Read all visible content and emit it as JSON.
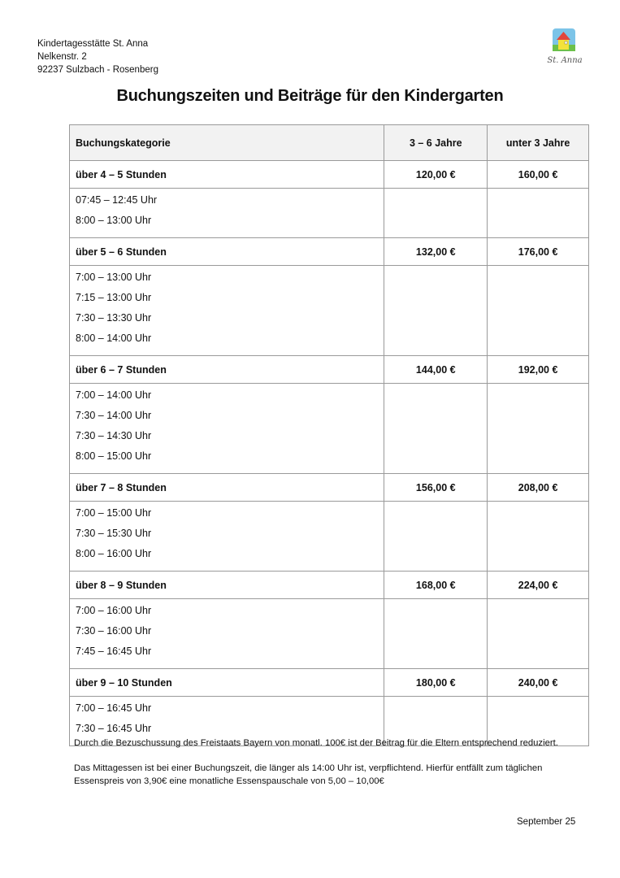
{
  "address": {
    "line1": "Kindertagesstätte St. Anna",
    "line2": "Nelkenstr. 2",
    "line3": "92237 Sulzbach - Rosenberg"
  },
  "logo": {
    "text": "St. Anna"
  },
  "title": "Buchungszeiten und Beiträge für den Kindergarten",
  "table": {
    "headers": [
      "Buchungskategorie",
      "3 – 6 Jahre",
      "unter 3 Jahre"
    ],
    "groups": [
      {
        "category": "über  4 – 5 Stunden",
        "price_3_6": "120,00 €",
        "price_u3": "160,00 €",
        "times": [
          "07:45 – 12:45 Uhr",
          "8:00 – 13:00 Uhr"
        ]
      },
      {
        "category": "über  5 – 6 Stunden",
        "price_3_6": "132,00 €",
        "price_u3": "176,00 €",
        "times": [
          "7:00 – 13:00 Uhr",
          "7:15 – 13:00 Uhr",
          "7:30 – 13:30 Uhr",
          "8:00 – 14:00 Uhr"
        ]
      },
      {
        "category": "über  6 – 7 Stunden",
        "price_3_6": "144,00 €",
        "price_u3": "192,00 €",
        "times": [
          "7:00 – 14:00 Uhr",
          "7:30 – 14:00 Uhr",
          "7:30 – 14:30 Uhr",
          "8:00 – 15:00 Uhr"
        ]
      },
      {
        "category": "über  7 – 8 Stunden",
        "price_3_6": "156,00 €",
        "price_u3": "208,00 €",
        "times": [
          "7:00 – 15:00 Uhr",
          "7:30 – 15:30 Uhr",
          "8:00 – 16:00 Uhr"
        ]
      },
      {
        "category": "über  8 – 9 Stunden",
        "price_3_6": "168,00 €",
        "price_u3": "224,00 €",
        "times": [
          "7:00 – 16:00 Uhr",
          "7:30 – 16:00 Uhr",
          "7:45 – 16:45 Uhr"
        ]
      },
      {
        "category": "über  9 – 10 Stunden",
        "price_3_6": "180,00 €",
        "price_u3": "240,00 €",
        "times": [
          "7:00 – 16:45 Uhr",
          "7:30 – 16:45 Uhr"
        ]
      }
    ]
  },
  "notes": [
    "Durch die Bezuschussung des Freistaats Bayern von monatl. 100€ ist der Beitrag für die Eltern entsprechend reduziert.",
    "Das Mittagessen ist bei einer Buchungszeit, die länger als 14:00 Uhr ist, verpflichtend. Hierfür entfällt zum täglichen Essenspreis von 3,90€ eine monatliche Essenspauschale von 5,00 – 10,00€"
  ],
  "footer_date": "September 25"
}
